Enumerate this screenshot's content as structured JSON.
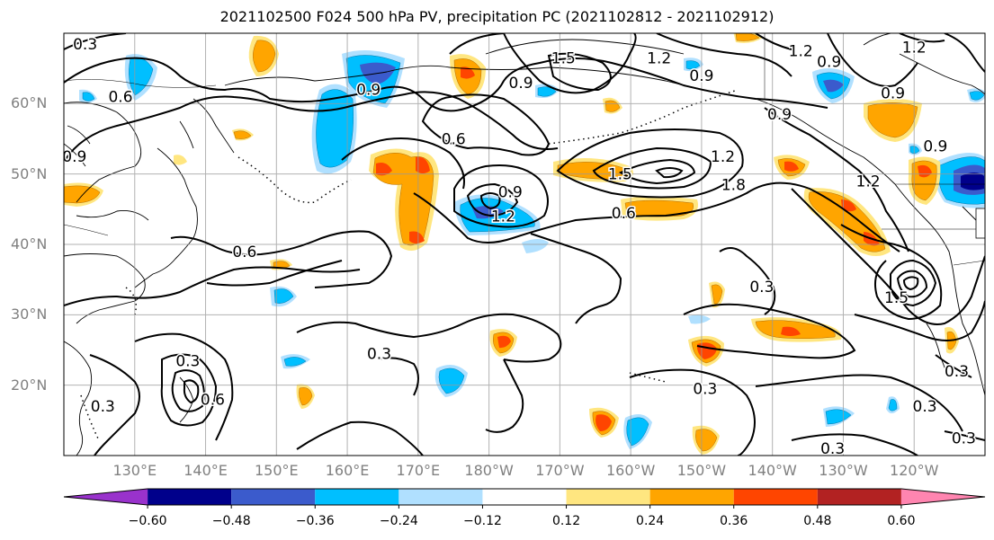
{
  "title": "2021102500 F024 500 hPa PV, precipitation PC (2021102812 - 2021102912)",
  "lat_labels": [
    {
      "text": "60°N",
      "lat": 60
    },
    {
      "text": "50°N",
      "lat": 50
    },
    {
      "text": "40°N",
      "lat": 40
    },
    {
      "text": "30°N",
      "lat": 30
    },
    {
      "text": "20°N",
      "lat": 20
    }
  ],
  "lon_labels": [
    {
      "text": "130°E",
      "lon": 130
    },
    {
      "text": "140°E",
      "lon": 140
    },
    {
      "text": "150°E",
      "lon": 150
    },
    {
      "text": "160°E",
      "lon": 160
    },
    {
      "text": "170°E",
      "lon": 170
    },
    {
      "text": "180°W",
      "lon": 180
    },
    {
      "text": "170°W",
      "lon": 190
    },
    {
      "text": "160°W",
      "lon": 200
    },
    {
      "text": "150°W",
      "lon": 210
    },
    {
      "text": "140°W",
      "lon": 220
    },
    {
      "text": "130°W",
      "lon": 230
    },
    {
      "text": "120°W",
      "lon": 240
    }
  ],
  "map_extent": {
    "lon_min": 120,
    "lon_max": 250,
    "lat_min": 10,
    "lat_max": 70
  },
  "contour_labels": [
    {
      "text": "0.3",
      "lon": 123,
      "lat": 68.5
    },
    {
      "text": "0.6",
      "lon": 128,
      "lat": 61
    },
    {
      "text": "0.9",
      "lon": 121.5,
      "lat": 52.5
    },
    {
      "text": "0.6",
      "lon": 145.5,
      "lat": 39
    },
    {
      "text": "0.9",
      "lon": 163,
      "lat": 62
    },
    {
      "text": "0.6",
      "lon": 175,
      "lat": 55
    },
    {
      "text": "0.9",
      "lon": 184.5,
      "lat": 63
    },
    {
      "text": "1.5",
      "lon": 190.5,
      "lat": 66.5
    },
    {
      "text": "1.2",
      "lon": 204,
      "lat": 66.5
    },
    {
      "text": "0.9",
      "lon": 210,
      "lat": 64
    },
    {
      "text": "1.2",
      "lon": 224,
      "lat": 67.5
    },
    {
      "text": "0.9",
      "lon": 228,
      "lat": 66
    },
    {
      "text": "1.2",
      "lon": 240,
      "lat": 68
    },
    {
      "text": "0.9",
      "lon": 237,
      "lat": 61.5
    },
    {
      "text": "0.9",
      "lon": 221,
      "lat": 58.5
    },
    {
      "text": "0.9",
      "lon": 243,
      "lat": 54
    },
    {
      "text": "1.2",
      "lon": 213,
      "lat": 52.5
    },
    {
      "text": "1.5",
      "lon": 198.5,
      "lat": 50
    },
    {
      "text": "1.8",
      "lon": 214.5,
      "lat": 48.5
    },
    {
      "text": "0.6",
      "lon": 199,
      "lat": 44.5
    },
    {
      "text": "1.2",
      "lon": 233.5,
      "lat": 49
    },
    {
      "text": "0.9",
      "lon": 183,
      "lat": 47.5
    },
    {
      "text": "1.2",
      "lon": 182,
      "lat": 44
    },
    {
      "text": "0.3",
      "lon": 218.5,
      "lat": 34
    },
    {
      "text": "1.5",
      "lon": 237.5,
      "lat": 32.5
    },
    {
      "text": "0.3",
      "lon": 164.5,
      "lat": 24.5
    },
    {
      "text": "0.3",
      "lon": 137.5,
      "lat": 23.5
    },
    {
      "text": "0.6",
      "lon": 141,
      "lat": 18
    },
    {
      "text": "0.3",
      "lon": 125.5,
      "lat": 17
    },
    {
      "text": "0.3",
      "lon": 210.5,
      "lat": 19.5
    },
    {
      "text": "0.3",
      "lon": 241.5,
      "lat": 17
    },
    {
      "text": "0.3",
      "lon": 246,
      "lat": 22
    },
    {
      "text": "0.3",
      "lon": 228.5,
      "lat": 11
    },
    {
      "text": "0.3",
      "lon": 247,
      "lat": 12.5
    }
  ],
  "colorbar": {
    "colors": [
      "#9932cc",
      "#00008b",
      "#3b5bcc",
      "#00bfff",
      "#b0e0ff",
      "#ffffff",
      "#ffe680",
      "#ffa500",
      "#ff4500",
      "#b22222",
      "#ff85b0"
    ],
    "tick_labels": [
      "−0.60",
      "−0.48",
      "−0.36",
      "−0.24",
      "−0.12",
      "0.12",
      "0.24",
      "0.36",
      "0.48",
      "0.60"
    ]
  }
}
